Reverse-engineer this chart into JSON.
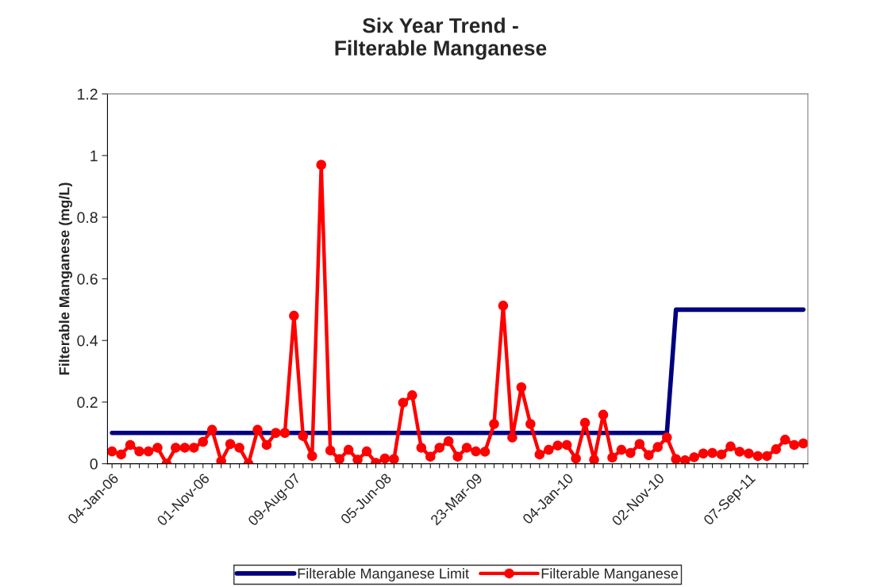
{
  "chart_data": {
    "type": "line",
    "title": "Six Year Trend -\nFilterable Manganese",
    "ylabel": "Filterable Manganese (mg/L)",
    "categories": [
      "04-Jan-06",
      null,
      null,
      null,
      null,
      null,
      null,
      null,
      null,
      null,
      "01-Nov-06",
      null,
      null,
      null,
      null,
      null,
      null,
      null,
      null,
      null,
      "09-Aug-07",
      null,
      null,
      null,
      null,
      null,
      null,
      null,
      null,
      null,
      "05-Jun-08",
      null,
      null,
      null,
      null,
      null,
      null,
      null,
      null,
      null,
      "23-Mar-09",
      null,
      null,
      null,
      null,
      null,
      null,
      null,
      null,
      null,
      "04-Jan-10",
      null,
      null,
      null,
      null,
      null,
      null,
      null,
      null,
      null,
      "02-Nov-10",
      null,
      null,
      null,
      null,
      null,
      null,
      null,
      null,
      null,
      "07-Sep-11",
      null,
      null,
      null,
      null,
      null,
      null
    ],
    "series": [
      {
        "name": "Filterable Manganese Limit",
        "color": "#000080",
        "marker": "none",
        "values": [
          0.1,
          0.1,
          0.1,
          0.1,
          0.1,
          0.1,
          0.1,
          0.1,
          0.1,
          0.1,
          0.1,
          0.1,
          0.1,
          0.1,
          0.1,
          0.1,
          0.1,
          0.1,
          0.1,
          0.1,
          0.1,
          0.1,
          0.1,
          0.1,
          0.1,
          0.1,
          0.1,
          0.1,
          0.1,
          0.1,
          0.1,
          0.1,
          0.1,
          0.1,
          0.1,
          0.1,
          0.1,
          0.1,
          0.1,
          0.1,
          0.1,
          0.1,
          0.1,
          0.1,
          0.1,
          0.1,
          0.1,
          0.1,
          0.1,
          0.1,
          0.1,
          0.1,
          0.1,
          0.1,
          0.1,
          0.1,
          0.1,
          0.1,
          0.1,
          0.1,
          0.1,
          0.1,
          0.5,
          0.5,
          0.5,
          0.5,
          0.5,
          0.5,
          0.5,
          0.5,
          0.5,
          0.5,
          0.5,
          0.5,
          0.5,
          0.5,
          0.5
        ]
      },
      {
        "name": "Filterable Manganese",
        "color": "#ff0000",
        "marker": "circle",
        "values": [
          0.04,
          0.03,
          0.061,
          0.04,
          0.04,
          0.052,
          0.0,
          0.052,
          0.052,
          0.052,
          0.071,
          0.11,
          0.008,
          0.064,
          0.052,
          0.0,
          0.11,
          0.061,
          0.1,
          0.1,
          0.48,
          0.09,
          0.025,
          0.97,
          0.043,
          0.015,
          0.045,
          0.013,
          0.04,
          0.003,
          0.017,
          0.015,
          0.198,
          0.222,
          0.052,
          0.023,
          0.052,
          0.073,
          0.023,
          0.052,
          0.04,
          0.039,
          0.129,
          0.513,
          0.085,
          0.248,
          0.129,
          0.03,
          0.045,
          0.059,
          0.061,
          0.017,
          0.133,
          0.013,
          0.159,
          0.02,
          0.045,
          0.035,
          0.064,
          0.028,
          0.054,
          0.085,
          0.015,
          0.011,
          0.021,
          0.033,
          0.035,
          0.03,
          0.056,
          0.039,
          0.033,
          0.025,
          0.025,
          0.047,
          0.078,
          0.061,
          0.066
        ]
      }
    ],
    "ylim": [
      0,
      1.2
    ],
    "yticks": [
      0,
      0.2,
      0.4,
      0.6,
      0.8,
      1,
      1.2
    ],
    "grid": false,
    "legend": "bottom"
  }
}
